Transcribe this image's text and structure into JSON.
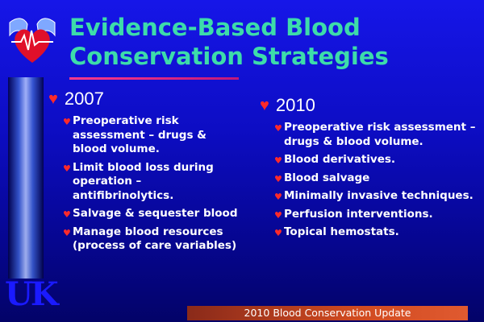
{
  "slide": {
    "title_line1": "Evidence-Based Blood",
    "title_line2": "Conservation Strategies",
    "logo_text": "UK",
    "footer": "2010 Blood Conservation Update",
    "colors": {
      "title": "#3ddcaa",
      "bullet": "#ff2a2a",
      "background": "#0d0dc4",
      "footer_bar": "#d04a20",
      "logo_text": "#1a1aff"
    },
    "icons": {
      "year_bullet": "heart-icon",
      "item_bullet": "heart-icon",
      "logo": "heart-logo-icon"
    }
  },
  "columns": [
    {
      "year": "2007",
      "items": [
        "Preoperative risk assessment – drugs & blood volume.",
        "Limit blood loss during operation – antifibrinolytics.",
        "Salvage & sequester blood",
        "Manage blood resources (process of care variables)"
      ]
    },
    {
      "year": "2010",
      "items": [
        "Preoperative risk assessment – drugs & blood volume.",
        "Blood derivatives.",
        "Blood salvage",
        "Minimally invasive techniques.",
        "Perfusion interventions.",
        "Topical hemostats."
      ]
    }
  ]
}
